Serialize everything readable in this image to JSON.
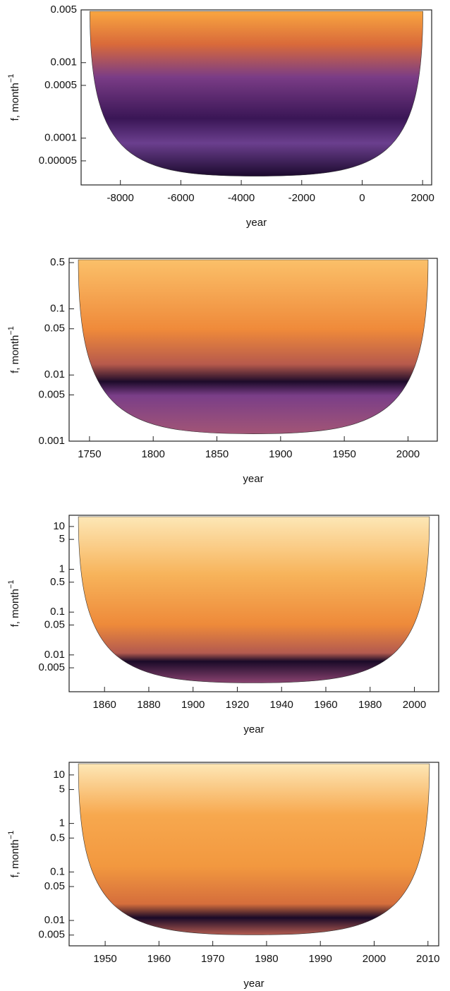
{
  "chart_data": [
    {
      "type": "scalogram",
      "xlabel": "year",
      "ylabel": "f, month",
      "ylabel_exponent": "−1",
      "log_y": true,
      "xlim": [
        -9300,
        2300
      ],
      "xticks": [
        -8000,
        -6000,
        -4000,
        -2000,
        0,
        2000
      ],
      "ylim": [
        2.4e-05,
        0.005
      ],
      "yticks": [
        5e-05,
        0.0001,
        0.0005,
        0.001,
        0.005
      ]
    },
    {
      "type": "scalogram",
      "xlabel": "year",
      "ylabel": "f, month",
      "ylabel_exponent": "−1",
      "log_y": true,
      "xlim": [
        1734,
        2023
      ],
      "xticks": [
        1750,
        1800,
        1850,
        1900,
        1950,
        2000
      ],
      "ylim": [
        0.001,
        0.58
      ],
      "yticks": [
        0.001,
        0.005,
        0.01,
        0.05,
        0.1,
        0.5
      ]
    },
    {
      "type": "scalogram",
      "xlabel": "year",
      "ylabel": "f, month",
      "ylabel_exponent": "−1",
      "log_y": true,
      "xlim": [
        1844,
        2011
      ],
      "xticks": [
        1860,
        1880,
        1900,
        1920,
        1940,
        1960,
        1980,
        2000
      ],
      "ylim": [
        0.00138,
        18.3
      ],
      "yticks": [
        0.005,
        0.01,
        0.05,
        0.1,
        0.5,
        1,
        5,
        10
      ]
    },
    {
      "type": "scalogram",
      "xlabel": "year",
      "ylabel": "f, month",
      "ylabel_exponent": "−1",
      "log_y": true,
      "xlim": [
        1943.3,
        2012
      ],
      "xticks": [
        1950,
        1960,
        1970,
        1980,
        1990,
        2000,
        2010
      ],
      "ylim": [
        0.003,
        18.2
      ],
      "yticks": [
        0.005,
        0.01,
        0.05,
        0.1,
        0.5,
        1,
        5,
        10
      ]
    }
  ]
}
